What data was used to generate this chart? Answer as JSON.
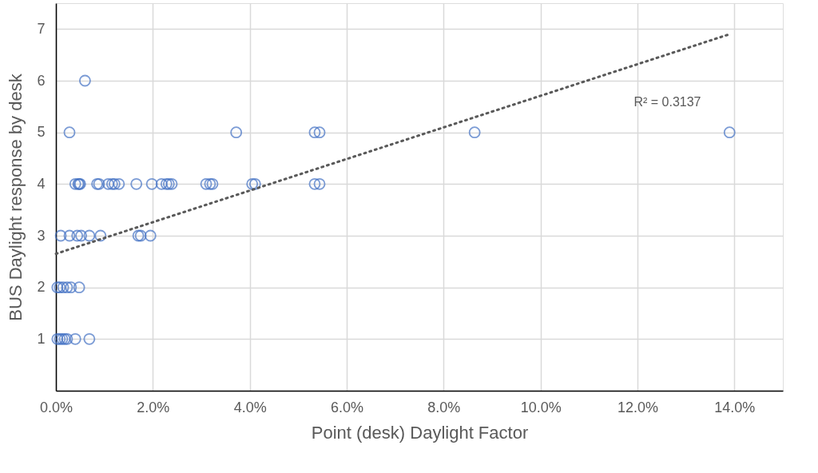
{
  "chart_data": {
    "type": "scatter",
    "xlabel": "Point (desk) Daylight Factor",
    "ylabel": "BUS Daylight response by desk",
    "xlim": [
      0,
      15
    ],
    "ylim": [
      0,
      7.5
    ],
    "xticks": [
      {
        "value": 0,
        "label": "0.0%"
      },
      {
        "value": 2,
        "label": "2.0%"
      },
      {
        "value": 4,
        "label": "4.0%"
      },
      {
        "value": 6,
        "label": "6.0%"
      },
      {
        "value": 8,
        "label": "8.0%"
      },
      {
        "value": 10,
        "label": "10.0%"
      },
      {
        "value": 12,
        "label": "12.0%"
      },
      {
        "value": 14,
        "label": "14.0%"
      }
    ],
    "yticks": [
      1,
      2,
      3,
      4,
      5,
      6,
      7
    ],
    "grid": true,
    "series": [
      {
        "marker": "circle",
        "color": "#4472c4",
        "x": [
          0.6,
          0.28,
          3.72,
          5.34,
          5.44,
          8.64,
          13.9,
          0.4,
          0.46,
          0.48,
          0.5,
          0.85,
          0.89,
          1.08,
          1.16,
          1.21,
          1.3,
          1.66,
          1.98,
          2.18,
          2.28,
          2.33,
          2.39,
          3.1,
          3.18,
          3.23,
          4.05,
          4.11,
          5.34,
          5.44,
          0.1,
          0.28,
          0.44,
          0.52,
          0.69,
          0.92,
          1.7,
          1.75,
          1.95,
          0.03,
          0.08,
          0.15,
          0.23,
          0.31,
          0.48,
          0.03,
          0.08,
          0.13,
          0.18,
          0.23,
          0.4,
          0.69
        ],
        "values": [
          6,
          5,
          5,
          5,
          5,
          5,
          5,
          4,
          4,
          4,
          4,
          4,
          4,
          4,
          4,
          4,
          4,
          4,
          4,
          4,
          4,
          4,
          4,
          4,
          4,
          4,
          4,
          4,
          4,
          4,
          3,
          3,
          3,
          3,
          3,
          3,
          3,
          3,
          3,
          2,
          2,
          2,
          2,
          2,
          2,
          1,
          1,
          1,
          1,
          1,
          1,
          1
        ]
      },
      {
        "type": "line",
        "color": "#595959",
        "line_style": "dotted",
        "x": [
          0,
          13.9
        ],
        "values": [
          2.65,
          6.9
        ]
      }
    ],
    "annotations": [
      "R² = 0.3137"
    ]
  }
}
